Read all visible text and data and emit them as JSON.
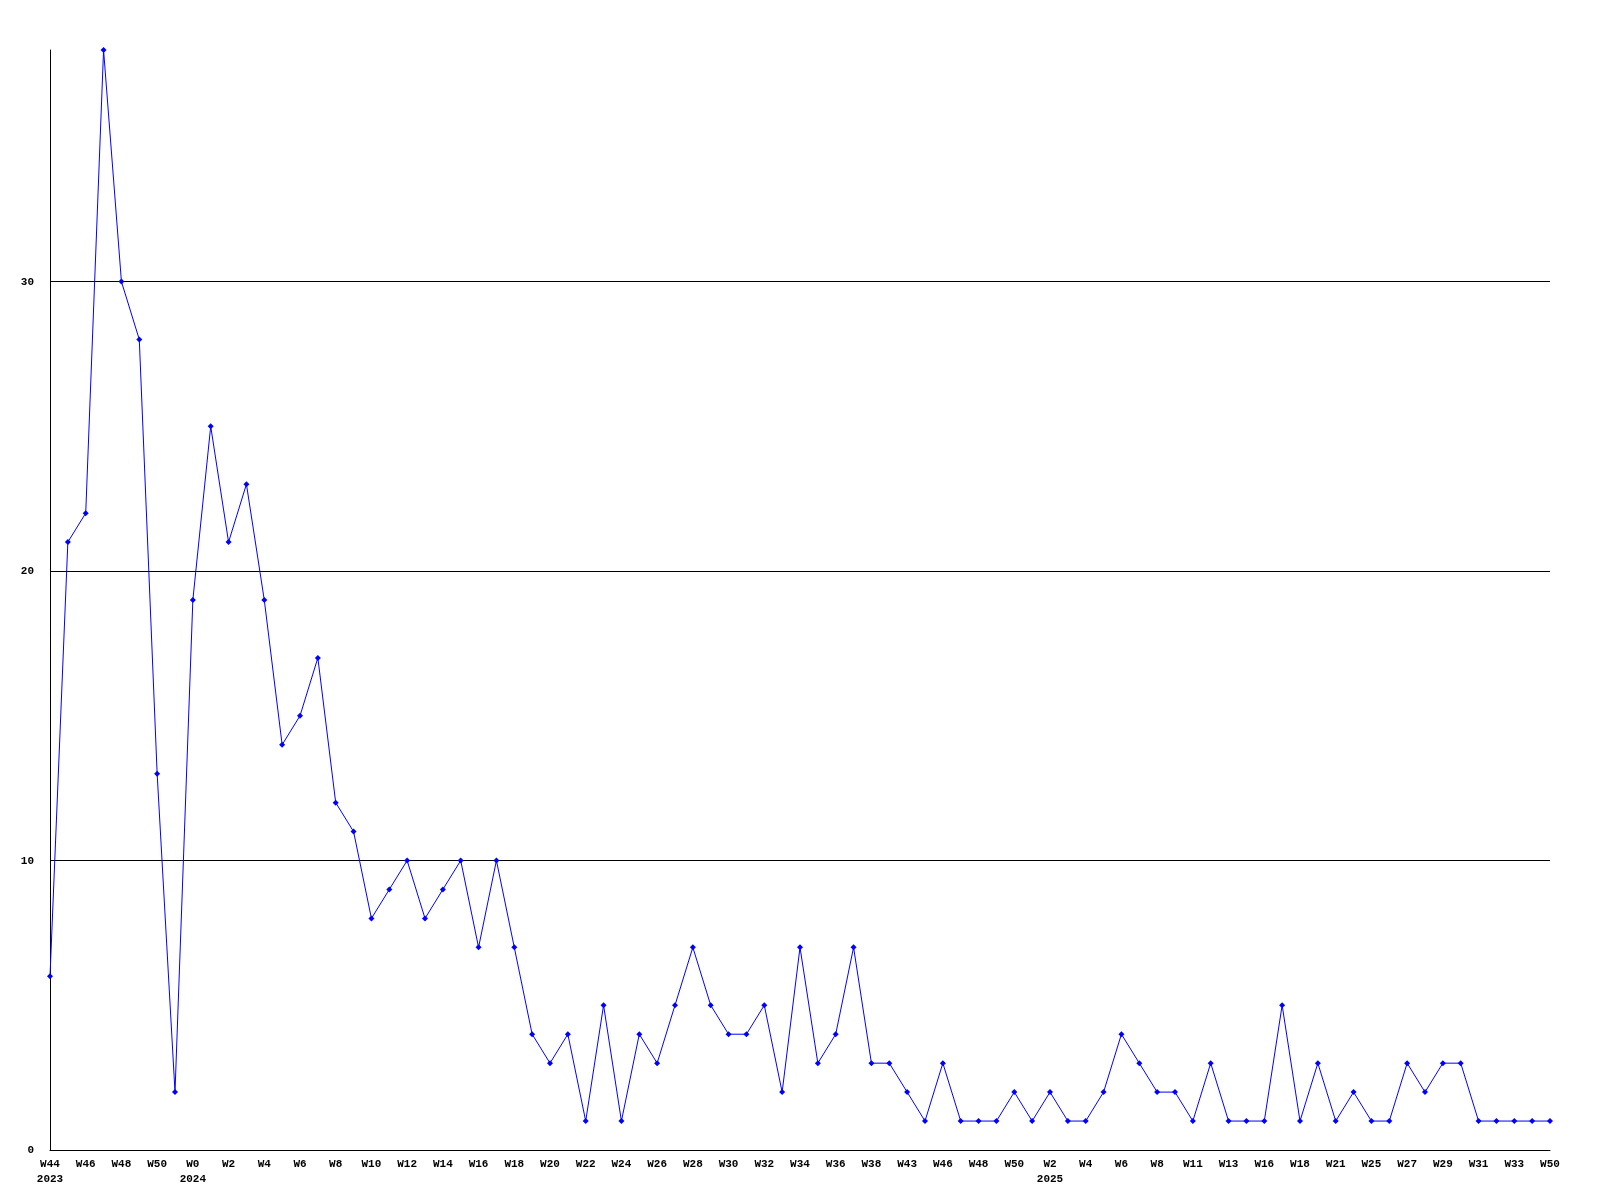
{
  "chart_data": {
    "type": "line",
    "categories": [
      "W44\n2023",
      null,
      "W46",
      null,
      "W48",
      null,
      "W50",
      null,
      "W0\n2024",
      null,
      "W2",
      null,
      "W4",
      null,
      "W6",
      null,
      "W8",
      null,
      "W10",
      null,
      "W12",
      null,
      "W14",
      null,
      "W16",
      null,
      "W18",
      null,
      "W20",
      null,
      "W22",
      null,
      "W24",
      null,
      "W26",
      null,
      "W28",
      null,
      "W30",
      null,
      "W32",
      null,
      "W34",
      null,
      "W36",
      null,
      "W38",
      null,
      "W43",
      null,
      "W46",
      null,
      "W48",
      null,
      "W50",
      null,
      "W2\n2025",
      null,
      "W4",
      null,
      "W6",
      null,
      "W8",
      null,
      "W11",
      null,
      "W13",
      null,
      "W16",
      null,
      "W18",
      null,
      "W21",
      null,
      "W25",
      null,
      "W27",
      null,
      "W29",
      null,
      "W31",
      null,
      "W33",
      null,
      "W50"
    ],
    "series": [
      {
        "color": "#0000ff",
        "values": [
          6,
          21,
          22,
          38,
          30,
          28,
          13,
          2,
          19,
          25,
          21,
          23,
          19,
          14,
          15,
          17,
          12,
          11,
          8,
          9,
          10,
          8,
          9,
          10,
          7,
          10,
          7,
          4,
          3,
          4,
          1,
          5,
          1,
          4,
          3,
          5,
          7,
          5,
          4,
          4,
          5,
          2,
          7,
          3,
          4,
          7,
          3,
          3,
          2,
          1,
          3,
          1,
          1,
          1,
          2,
          1,
          2,
          1,
          1,
          2,
          4,
          3,
          2,
          2,
          1,
          3,
          1,
          1,
          1,
          5,
          1,
          3,
          1,
          2,
          1,
          1,
          3,
          2,
          3,
          3,
          1,
          1,
          1,
          1,
          1
        ]
      }
    ],
    "ylim": [
      0,
      38
    ],
    "yticks": [
      0,
      10,
      20,
      30
    ],
    "grid": "y",
    "marker": "diamond",
    "line_style": "solid"
  }
}
